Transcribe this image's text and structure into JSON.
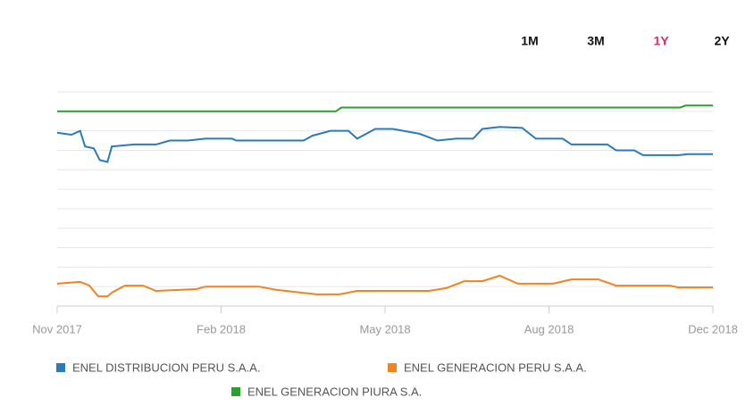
{
  "chart_data": {
    "type": "line",
    "periods": [
      "1M",
      "3M",
      "1Y",
      "2Y"
    ],
    "active_period": 2,
    "active_color": "#e8226a",
    "xlim": [
      0,
      12
    ],
    "xticks": [
      {
        "value": 0,
        "label": "Nov 2017"
      },
      {
        "value": 3,
        "label": "Feb 2018"
      },
      {
        "value": 6,
        "label": "May 2018"
      },
      {
        "value": 9,
        "label": "Aug 2018"
      },
      {
        "value": 12,
        "label": "Dec 2018"
      }
    ],
    "ylim": [
      0,
      11
    ],
    "yticks": [
      1,
      2,
      3,
      4,
      5,
      6,
      7,
      8,
      9,
      10,
      11
    ],
    "grid": true,
    "legend": "bottom",
    "series": [
      {
        "name": "ENEL DISTRIBUCION PERU S.A.A.",
        "color": "#2b7bba",
        "x": [
          0,
          0.26,
          0.42,
          0.51,
          0.67,
          0.78,
          0.92,
          1.0,
          1.41,
          1.81,
          2.06,
          2.39,
          2.71,
          3.2,
          3.28,
          4.51,
          4.67,
          5.0,
          5.33,
          5.49,
          5.82,
          6.14,
          6.63,
          6.96,
          7.29,
          7.61,
          7.78,
          8.1,
          8.51,
          8.76,
          9.25,
          9.41,
          10.07,
          10.23,
          10.56,
          10.72,
          11.37,
          11.54,
          12
        ],
        "values": [
          8.9,
          8.8,
          9.0,
          8.2,
          8.1,
          7.5,
          7.4,
          8.2,
          8.3,
          8.3,
          8.5,
          8.5,
          8.6,
          8.6,
          8.5,
          8.5,
          8.75,
          9.0,
          9.0,
          8.6,
          9.1,
          9.1,
          8.85,
          8.5,
          8.6,
          8.6,
          9.1,
          9.2,
          9.15,
          8.6,
          8.6,
          8.3,
          8.3,
          8.0,
          8.0,
          7.75,
          7.75,
          7.8,
          7.8
        ]
      },
      {
        "name": "ENEL GENERACION PERU S.A.A.",
        "color": "#f58220",
        "x": [
          0,
          0.42,
          0.59,
          0.75,
          0.92,
          1.0,
          1.24,
          1.57,
          1.81,
          2.55,
          2.71,
          3.69,
          4.02,
          4.75,
          5.16,
          5.49,
          6.8,
          7.12,
          7.45,
          7.78,
          8.1,
          8.43,
          9.08,
          9.41,
          9.9,
          10.23,
          11.21,
          11.37,
          12
        ],
        "values": [
          1.15,
          1.24,
          1.05,
          0.5,
          0.5,
          0.69,
          1.05,
          1.05,
          0.78,
          0.87,
          1.0,
          1.0,
          0.83,
          0.6,
          0.6,
          0.78,
          0.78,
          0.92,
          1.28,
          1.28,
          1.56,
          1.15,
          1.15,
          1.37,
          1.37,
          1.05,
          1.05,
          0.96,
          0.96
        ]
      },
      {
        "name": "ENEL GENERACION PIURA S.A.",
        "color": "#2ca02c",
        "x": [
          0,
          5.1,
          5.2,
          11.4,
          11.5,
          12
        ],
        "values": [
          10.0,
          10.0,
          10.2,
          10.2,
          10.3,
          10.3
        ]
      }
    ]
  }
}
